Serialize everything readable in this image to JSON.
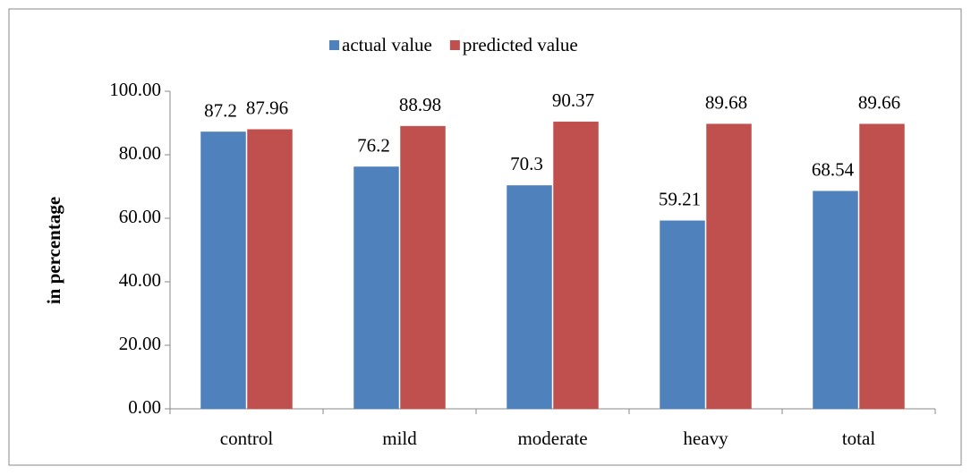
{
  "chart_data": {
    "type": "bar",
    "y_label": "in percentage",
    "categories": [
      "control",
      "mild",
      "moderate",
      "heavy",
      "total"
    ],
    "series": [
      {
        "name": "actual value",
        "color": "#4f81bd",
        "values": [
          87.2,
          76.2,
          70.3,
          59.21,
          68.54
        ]
      },
      {
        "name": "predicted value",
        "color": "#c0504d",
        "values": [
          87.96,
          88.98,
          90.37,
          89.68,
          89.66
        ]
      }
    ],
    "ylim": [
      0,
      100
    ],
    "yticks": [
      {
        "value": 0,
        "label": "0.00"
      },
      {
        "value": 20,
        "label": "20.00"
      },
      {
        "value": 40,
        "label": "40.00"
      },
      {
        "value": 60,
        "label": "60.00"
      },
      {
        "value": 80,
        "label": "80.00"
      },
      {
        "value": 100,
        "label": "100.00"
      }
    ],
    "legend": "top",
    "grid": false
  }
}
